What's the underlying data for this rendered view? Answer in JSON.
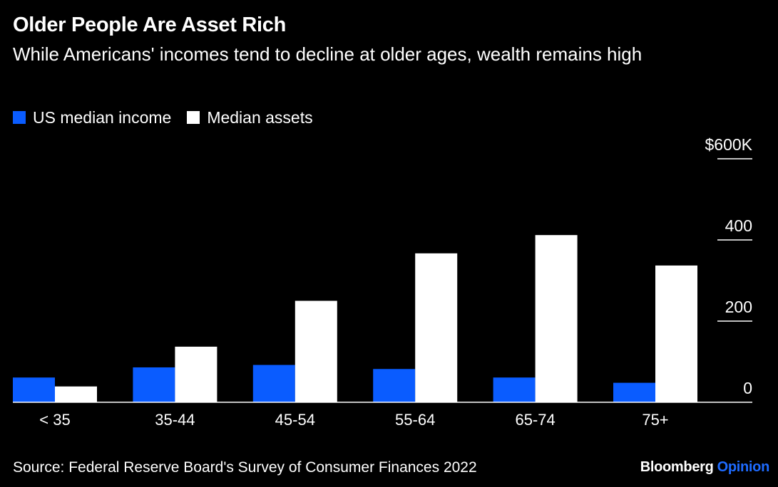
{
  "title": "Older People Are Asset Rich",
  "subtitle": "While Americans' incomes tend to decline at older ages, wealth remains high",
  "legend": [
    {
      "label": "US median income",
      "color": "#0a5cff"
    },
    {
      "label": "Median assets",
      "color": "#ffffff"
    }
  ],
  "source": "Source: Federal Reserve Board's Survey of Consumer Finances 2022",
  "brand": {
    "name": "Bloomberg",
    "accent": "Opinion",
    "accent_color": "#1e6bff"
  },
  "chart_data": {
    "type": "bar",
    "categories": [
      "< 35",
      "35-44",
      "45-54",
      "55-64",
      "65-74",
      "75+"
    ],
    "series": [
      {
        "name": "US median income",
        "color": "#0a5cff",
        "values": [
          61,
          86,
          92,
          82,
          61,
          48
        ]
      },
      {
        "name": "Median assets",
        "color": "#ffffff",
        "values": [
          39,
          137,
          250,
          367,
          412,
          337
        ]
      }
    ],
    "yticks": [
      0,
      200,
      400,
      600
    ],
    "ytick_labels": [
      "0",
      "200",
      "400",
      "$600K"
    ],
    "ylim": [
      0,
      600
    ],
    "grid": false,
    "legend_position": "top-left"
  }
}
